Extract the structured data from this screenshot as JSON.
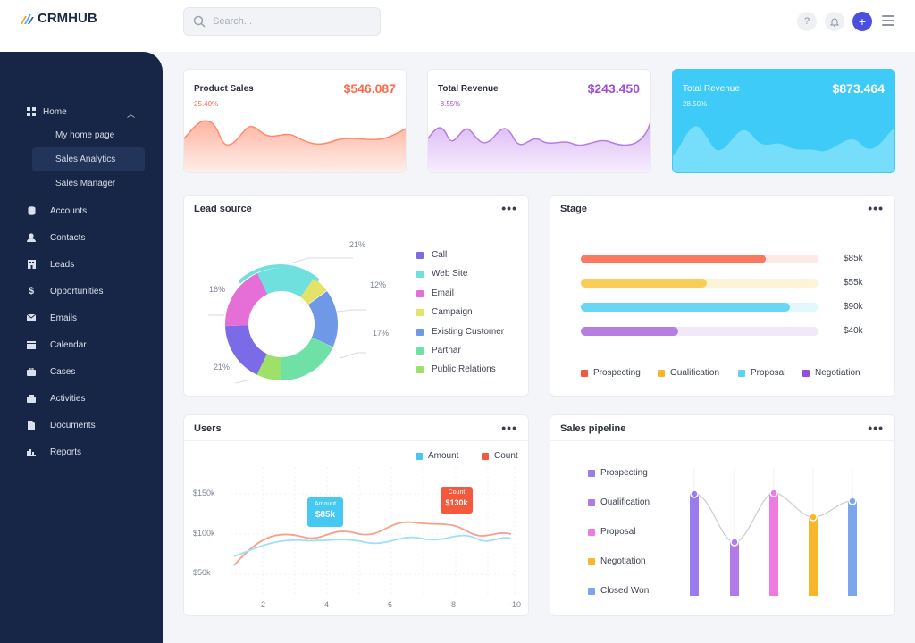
{
  "brand": {
    "name": "CRMHUB"
  },
  "search": {
    "placeholder": "Search..."
  },
  "topbar": {
    "help": "?",
    "add": "+"
  },
  "sidebar": {
    "home": "Home",
    "subs": [
      "My home page",
      "Sales Analytics",
      "Sales Manager"
    ],
    "items": [
      "Accounts",
      "Contacts",
      "Leads",
      "Opportunities",
      "Emails",
      "Calendar",
      "Cases",
      "Activities",
      "Documents",
      "Reports"
    ]
  },
  "stats": [
    {
      "title": "Product Sales",
      "value": "$546.087",
      "pct": "25.40%",
      "color": "#ff6b4a"
    },
    {
      "title": "Total Revenue",
      "value": "$243.450",
      "pct": "-8.55%",
      "color": "#a04fd6"
    },
    {
      "title": "Total Revenue",
      "value": "$873.464",
      "pct": "28.50%",
      "color": "#ffffff"
    }
  ],
  "lead": {
    "title": "Lead source",
    "labels": [
      "21%",
      "12%",
      "17%",
      "21%",
      "16%"
    ],
    "legend": [
      {
        "name": "Call",
        "color": "#7b6be6"
      },
      {
        "name": "Web Site",
        "color": "#6fe0dd"
      },
      {
        "name": "Email",
        "color": "#e56fd6"
      },
      {
        "name": "Campaign",
        "color": "#e3e36a"
      },
      {
        "name": "Existing Customer",
        "color": "#6f98e6"
      },
      {
        "name": "Partnar",
        "color": "#6fe0a6"
      },
      {
        "name": "Public Relations",
        "color": "#9fe06a"
      }
    ]
  },
  "stage": {
    "title": "Stage",
    "bars": [
      {
        "value": "$85k",
        "fill": 0.78,
        "color": "#fb7a5f",
        "track": "#fdeae5"
      },
      {
        "value": "$55k",
        "fill": 0.53,
        "color": "#f9cd5a",
        "track": "#fdf3d9"
      },
      {
        "value": "$90k",
        "fill": 0.88,
        "color": "#6ad6f5",
        "track": "#e3f7fd"
      },
      {
        "value": "$40k",
        "fill": 0.41,
        "color": "#b57ee0",
        "track": "#f1e8f8"
      }
    ],
    "legend": [
      {
        "name": "Prospecting",
        "color": "#f5593d"
      },
      {
        "name": "Oualification",
        "color": "#f8b72a"
      },
      {
        "name": "Proposal",
        "color": "#5ed2f0"
      },
      {
        "name": "Negotiation",
        "color": "#9650d6"
      }
    ]
  },
  "users": {
    "title": "Users",
    "legend": [
      {
        "name": "Amount",
        "color": "#45c8f2"
      },
      {
        "name": "Count",
        "color": "#f5593d"
      }
    ],
    "yticks": [
      "$150k",
      "$100k",
      "$50k"
    ],
    "xticks": [
      "-2",
      "-4",
      "-6",
      "-8",
      "-10"
    ],
    "tip_amount": {
      "label": "Amount",
      "value": "$85k"
    },
    "tip_count": {
      "label": "Count",
      "value": "$130k"
    }
  },
  "pipeline": {
    "title": "Sales pipeline",
    "legend": [
      {
        "name": "Prospecting",
        "color": "#9a7bf0"
      },
      {
        "name": "Oualification",
        "color": "#b07ae8"
      },
      {
        "name": "Proposal",
        "color": "#f07ae0"
      },
      {
        "name": "Negotiation",
        "color": "#f8b72a"
      },
      {
        "name": "Closed Won",
        "color": "#7aa6f0"
      }
    ]
  }
}
